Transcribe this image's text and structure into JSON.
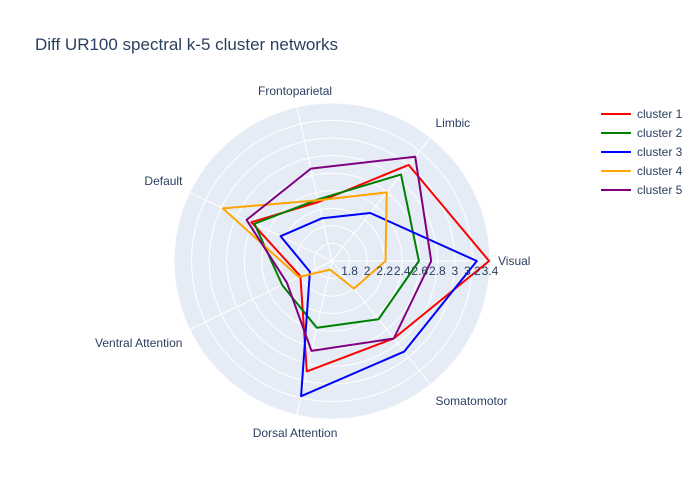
{
  "chart_data": {
    "type": "radar",
    "title": "Diff UR100 spectral k-5 cluster networks",
    "axes": [
      "Visual",
      "Somatomotor",
      "Dorsal Attention",
      "Ventral Attention",
      "Default",
      "Frontoparietal",
      "Limbic"
    ],
    "radial_range": [
      1.6,
      3.4
    ],
    "radial_ticks": [
      1.8,
      2,
      2.2,
      2.4,
      2.6,
      2.8,
      3,
      3.2,
      3.4
    ],
    "tick_labels": [
      "1.8",
      "2",
      "2.2",
      "2.4",
      "2.6",
      "2.8",
      "3",
      "3.2",
      "3.4"
    ],
    "series": [
      {
        "name": "cluster 1",
        "color": "#ff0000",
        "values": [
          3.39,
          2.73,
          2.89,
          2.0,
          2.62,
          2.29,
          3.0
        ]
      },
      {
        "name": "cluster 2",
        "color": "#008000",
        "values": [
          2.59,
          2.45,
          2.38,
          2.23,
          2.58,
          2.32,
          2.86
        ]
      },
      {
        "name": "cluster 3",
        "color": "#0000ff",
        "values": [
          3.25,
          2.92,
          3.18,
          1.88,
          2.25,
          2.1,
          2.3
        ]
      },
      {
        "name": "cluster 4",
        "color": "#ffa500",
        "values": [
          2.21,
          2.0,
          1.7,
          2.02,
          2.98,
          2.31,
          2.6
        ]
      },
      {
        "name": "cluster 5",
        "color": "#800080",
        "values": [
          2.73,
          2.73,
          2.65,
          2.17,
          2.68,
          2.68,
          3.12
        ]
      }
    ]
  }
}
